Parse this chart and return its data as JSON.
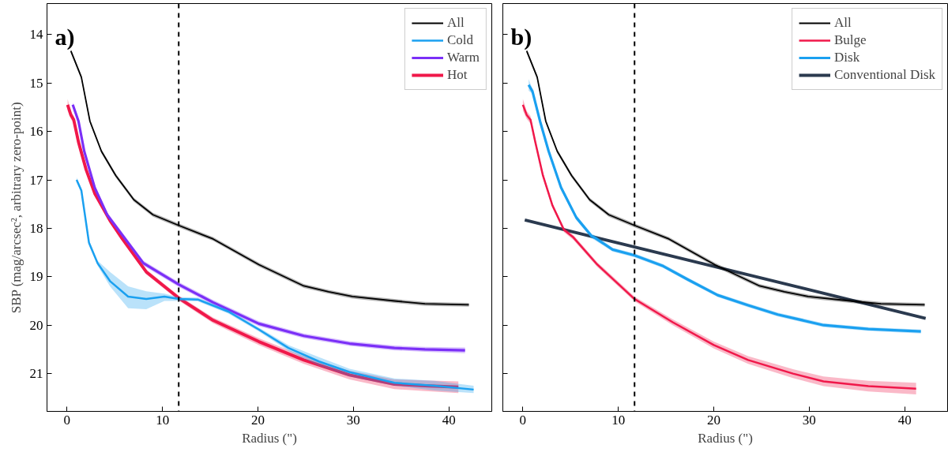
{
  "chart_data": [
    {
      "type": "line",
      "xlabel": "Radius (\")",
      "ylabel": "SBP (mag/arcsec², arbitrary zero-point)",
      "xlim": [
        -2.1,
        44.5
      ],
      "ylim": [
        21.78,
        13.36
      ],
      "xticks": [
        0,
        10,
        20,
        30,
        40
      ],
      "yticks": [
        14,
        15,
        16,
        17,
        18,
        19,
        20,
        21
      ],
      "legend": "top right",
      "annotations": [
        "a)"
      ],
      "ref_lines": [
        {
          "axis": "x",
          "value": 11.7,
          "color": "#000000",
          "line_style": "dashed"
        }
      ],
      "series": [
        {
          "name": "All",
          "color": "#000000",
          "x": [
            0.4,
            1.5,
            2.4,
            3.6,
            5.1,
            7.0,
            9.0,
            11.7,
            15.3,
            20.1,
            24.8,
            27.4,
            29.9,
            34.3,
            37.5,
            42.1
          ],
          "values": [
            14.34,
            14.88,
            15.79,
            16.41,
            16.91,
            17.41,
            17.72,
            17.94,
            18.22,
            18.75,
            19.19,
            19.31,
            19.41,
            19.5,
            19.56,
            19.58
          ],
          "lower": [
            14.3,
            14.84,
            15.75,
            16.37,
            16.87,
            17.37,
            17.68,
            17.9,
            18.18,
            18.71,
            19.15,
            19.27,
            19.37,
            19.46,
            19.52,
            19.54
          ],
          "upper": [
            14.38,
            14.92,
            15.83,
            16.45,
            16.95,
            17.45,
            17.76,
            17.98,
            18.26,
            18.79,
            19.23,
            19.35,
            19.45,
            19.54,
            19.6,
            19.62
          ]
        },
        {
          "name": "Cold",
          "color": "#1aa0f0",
          "x": [
            1.0,
            1.5,
            2.3,
            3.2,
            4.5,
            6.4,
            8.3,
            10.2,
            11.7,
            13.7,
            16.9,
            20.1,
            23.2,
            26.4,
            29.6,
            34.3,
            38.5,
            42.6
          ],
          "values": [
            17.0,
            17.22,
            18.3,
            18.72,
            19.09,
            19.41,
            19.46,
            19.41,
            19.46,
            19.47,
            19.72,
            20.09,
            20.47,
            20.75,
            20.97,
            21.19,
            21.25,
            21.33
          ],
          "lower": [
            16.95,
            17.17,
            18.25,
            18.67,
            18.9,
            19.2,
            19.3,
            19.35,
            19.42,
            19.43,
            19.68,
            20.05,
            20.41,
            20.66,
            20.9,
            21.1,
            21.15,
            21.25
          ],
          "upper": [
            17.05,
            17.27,
            18.35,
            18.77,
            19.2,
            19.65,
            19.67,
            19.5,
            19.5,
            19.51,
            19.76,
            20.13,
            20.53,
            20.84,
            21.06,
            21.25,
            21.35,
            21.4
          ]
        },
        {
          "name": "Warm",
          "color": "#7b2ff7",
          "x": [
            0.6,
            1.2,
            1.8,
            2.9,
            4.2,
            6.1,
            8.0,
            11.7,
            15.3,
            20.1,
            24.8,
            29.6,
            34.3,
            37.5,
            41.7
          ],
          "values": [
            15.45,
            15.79,
            16.41,
            17.16,
            17.72,
            18.22,
            18.72,
            19.16,
            19.53,
            19.97,
            20.22,
            20.38,
            20.47,
            20.5,
            20.52
          ],
          "lower": [
            15.4,
            15.74,
            16.36,
            17.11,
            17.67,
            18.17,
            18.67,
            19.11,
            19.48,
            19.92,
            20.17,
            20.33,
            20.42,
            20.45,
            20.46
          ],
          "upper": [
            15.5,
            15.84,
            16.46,
            17.21,
            17.77,
            18.27,
            18.77,
            19.21,
            19.58,
            20.02,
            20.27,
            20.43,
            20.52,
            20.55,
            20.58
          ]
        },
        {
          "name": "Hot",
          "color": "#f0184a",
          "x": [
            0.06,
            0.4,
            0.7,
            1.2,
            2.0,
            2.9,
            4.5,
            5.8,
            8.3,
            11.7,
            15.3,
            20.1,
            24.8,
            29.6,
            34.3,
            37.5,
            41.0
          ],
          "values": [
            15.45,
            15.66,
            15.76,
            16.22,
            16.79,
            17.28,
            17.84,
            18.22,
            18.9,
            19.44,
            19.9,
            20.34,
            20.72,
            21.03,
            21.22,
            21.25,
            21.28
          ],
          "lower": [
            15.33,
            15.58,
            15.68,
            16.16,
            16.74,
            17.23,
            17.79,
            18.17,
            18.85,
            19.39,
            19.84,
            20.27,
            20.64,
            20.94,
            21.12,
            21.14,
            21.16
          ],
          "upper": [
            15.57,
            15.74,
            15.84,
            16.28,
            16.84,
            17.33,
            17.89,
            18.27,
            18.95,
            19.49,
            19.96,
            20.41,
            20.8,
            21.12,
            21.32,
            21.36,
            21.4
          ]
        }
      ]
    },
    {
      "type": "line",
      "xlabel": "Radius (\")",
      "xlim": [
        -2.1,
        44.5
      ],
      "ylim": [
        21.78,
        13.36
      ],
      "xticks": [
        0,
        10,
        20,
        30,
        40
      ],
      "yticks": [
        14,
        15,
        16,
        17,
        18,
        19,
        20,
        21
      ],
      "tick_labels": "x",
      "legend": "top right",
      "annotations": [
        "b)"
      ],
      "ref_lines": [
        {
          "axis": "x",
          "value": 11.7,
          "color": "#000000",
          "line_style": "dashed"
        }
      ],
      "series": [
        {
          "name": "All",
          "color": "#000000",
          "x": [
            0.4,
            1.5,
            2.4,
            3.6,
            5.1,
            7.0,
            9.0,
            11.7,
            15.3,
            20.1,
            24.8,
            27.4,
            29.9,
            34.3,
            37.5,
            42.1
          ],
          "values": [
            14.34,
            14.88,
            15.79,
            16.41,
            16.91,
            17.41,
            17.72,
            17.94,
            18.22,
            18.75,
            19.19,
            19.31,
            19.41,
            19.5,
            19.56,
            19.58
          ],
          "lower": [
            14.3,
            14.84,
            15.75,
            16.37,
            16.87,
            17.37,
            17.68,
            17.9,
            18.18,
            18.71,
            19.15,
            19.27,
            19.37,
            19.46,
            19.52,
            19.54
          ],
          "upper": [
            14.38,
            14.92,
            15.83,
            16.45,
            16.95,
            17.45,
            17.76,
            17.98,
            18.26,
            18.79,
            19.23,
            19.35,
            19.45,
            19.54,
            19.6,
            19.62
          ]
        },
        {
          "name": "Bulge",
          "color": "#f0184a",
          "x": [
            0.0,
            0.4,
            0.8,
            1.3,
            2.1,
            3.1,
            4.3,
            5.3,
            7.8,
            11.7,
            15.7,
            20.0,
            23.6,
            28.3,
            31.5,
            36.2,
            41.2
          ],
          "values": [
            15.45,
            15.66,
            15.76,
            16.22,
            16.91,
            17.53,
            18.03,
            18.19,
            18.75,
            19.46,
            19.94,
            20.41,
            20.72,
            21.0,
            21.16,
            21.26,
            21.31
          ],
          "lower": [
            15.33,
            15.58,
            15.68,
            16.16,
            16.86,
            17.48,
            17.98,
            18.14,
            18.7,
            19.41,
            19.88,
            20.34,
            20.64,
            20.91,
            21.06,
            21.15,
            21.19
          ],
          "upper": [
            15.57,
            15.74,
            15.84,
            16.28,
            16.96,
            17.58,
            18.08,
            18.24,
            18.8,
            19.51,
            20.0,
            20.48,
            20.8,
            21.09,
            21.26,
            21.37,
            21.43
          ]
        },
        {
          "name": "Disk",
          "color": "#1aa0f0",
          "x": [
            0.6,
            1.0,
            1.8,
            2.7,
            4.0,
            5.6,
            7.2,
            7.5,
            9.4,
            11.7,
            14.7,
            17.3,
            20.4,
            23.6,
            26.7,
            31.5,
            36.2,
            41.7
          ],
          "values": [
            15.04,
            15.17,
            15.79,
            16.41,
            17.16,
            17.78,
            18.16,
            18.19,
            18.44,
            18.56,
            18.78,
            19.06,
            19.38,
            19.59,
            19.78,
            20.0,
            20.08,
            20.13
          ],
          "lower": [
            14.92,
            15.12,
            15.74,
            16.36,
            17.11,
            17.73,
            18.11,
            18.14,
            18.4,
            18.52,
            18.74,
            19.02,
            19.34,
            19.55,
            19.74,
            19.96,
            20.04,
            20.09
          ],
          "upper": [
            15.16,
            15.22,
            15.84,
            16.46,
            17.21,
            17.83,
            18.21,
            18.24,
            18.48,
            18.6,
            18.82,
            19.1,
            19.42,
            19.63,
            19.82,
            20.04,
            20.12,
            20.17
          ]
        },
        {
          "name": "Conventional Disk",
          "color": "#2b3a4f",
          "x": [
            0.2,
            42.2
          ],
          "values": [
            17.83,
            19.86
          ]
        }
      ]
    }
  ]
}
